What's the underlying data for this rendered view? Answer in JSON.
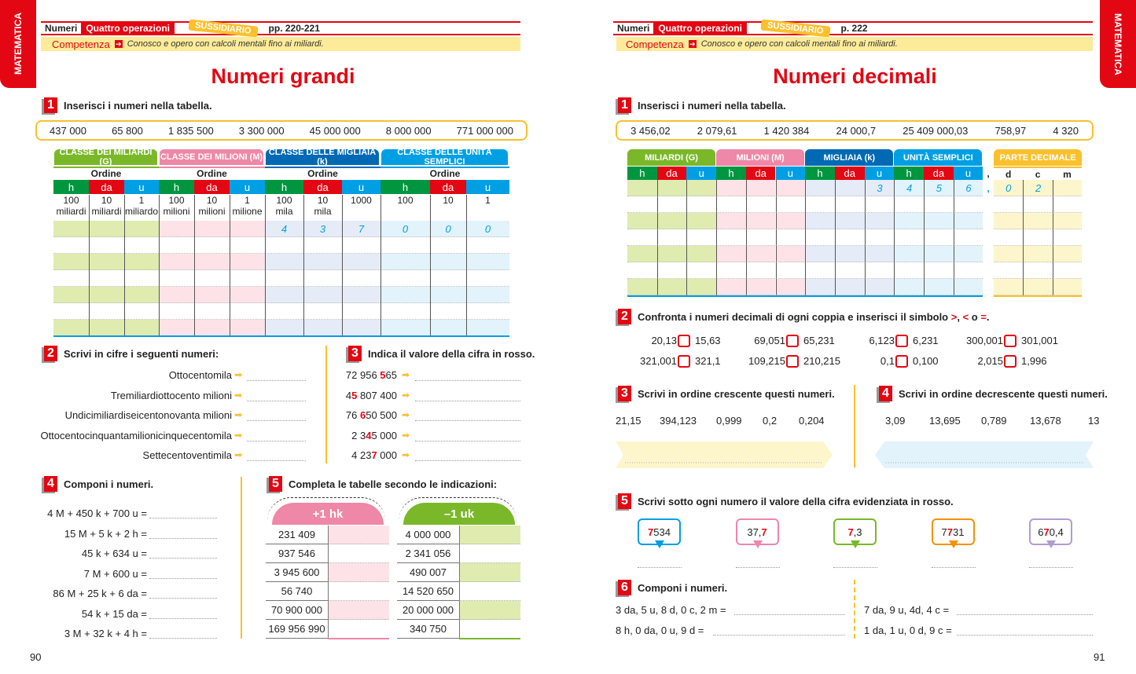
{
  "colors": {
    "red": "#e30613",
    "green": "#7ab829",
    "darkgreen": "#009640",
    "pink": "#ee87a8",
    "blue": "#0069b4",
    "lightblue": "#009fe3",
    "yellow": "#fbc02d"
  },
  "left": {
    "side_tab": "MATEMATICA",
    "header": {
      "topic": "Numeri",
      "subtopic": "Quattro operazioni",
      "tag": "SUSSIDIARIO",
      "pages": "pp. 220-221"
    },
    "competence": {
      "label": "Competenza",
      "text": "Conosco e opero con calcoli mentali fino ai miliardi."
    },
    "title": "Numeri grandi",
    "ex1": {
      "num": "1",
      "text": "Inserisci i numeri nella tabella.",
      "numbers": [
        "437 000",
        "65 800",
        "1 835 500",
        "3 300 000",
        "45 000 000",
        "8 000 000",
        "771 000 000"
      ],
      "classes": [
        "CLASSE DEI MILIARDI (G)",
        "CLASSE DEI MILIONI (M)",
        "CLASSE DELLE MIGLIAIA (k)",
        "CLASSE DELLE UNITÀ SEMPLICI"
      ],
      "order_label": "Ordine",
      "orders": [
        "h",
        "da",
        "u"
      ],
      "place_values": [
        [
          "100",
          "miliardi"
        ],
        [
          "10",
          "miliardi"
        ],
        [
          "1",
          "miliardo"
        ],
        [
          "100",
          "milioni"
        ],
        [
          "10",
          "milioni"
        ],
        [
          "1",
          "milione"
        ],
        [
          "100",
          "mila"
        ],
        [
          "10",
          "mila"
        ],
        [
          "1000",
          ""
        ],
        [
          "100",
          ""
        ],
        [
          "10",
          ""
        ],
        [
          "1",
          ""
        ]
      ],
      "example_row": [
        "",
        "",
        "",
        "",
        "",
        "",
        "4",
        "3",
        "7",
        "0",
        "0",
        "0"
      ]
    },
    "ex2": {
      "num": "2",
      "text": "Scrivi in cifre i seguenti numeri:",
      "items": [
        "Ottocentomila",
        "Tremiliardiottocento milioni",
        "Undicimiliardiseicentonovanta milioni",
        "Ottocentocinquantamilionicinquecentomila",
        "Settecentoventimila"
      ]
    },
    "ex3": {
      "num": "3",
      "text": "Indica il valore della cifra in rosso.",
      "items": [
        {
          "pre": "72 956 ",
          "red": "5",
          "post": "65"
        },
        {
          "pre": "4",
          "red": "5",
          "post": " 807 400"
        },
        {
          "pre": "76 ",
          "red": "6",
          "post": "50 500"
        },
        {
          "pre": "2 3",
          "red": "4",
          "post": "5 000"
        },
        {
          "pre": "4 23",
          "red": "7",
          "post": " 000"
        }
      ]
    },
    "ex4": {
      "num": "4",
      "text": "Componi i numeri.",
      "items": [
        "4 M + 450 k + 700 u =",
        "15 M + 5 k + 2 h =",
        "45 k + 634 u =",
        "7 M + 600 u =",
        "86 M + 25 k + 6 da =",
        "54 k + 15 da =",
        "3 M + 32 k + 4 h ="
      ]
    },
    "ex5": {
      "num": "5",
      "text": "Completa le tabelle secondo le indicazioni:",
      "tables": [
        {
          "op": "+1 hk",
          "values": [
            "231 409",
            "937 546",
            "3 945 600",
            "56 740",
            "70 900 000",
            "169 956 990"
          ]
        },
        {
          "op": "–1 uk",
          "values": [
            "4 000 000",
            "2 341 056",
            "490 007",
            "14 520 650",
            "20 000 000",
            "340 750"
          ]
        }
      ]
    },
    "page_number": "90"
  },
  "right": {
    "side_tab": "MATEMATICA",
    "header": {
      "topic": "Numeri",
      "subtopic": "Quattro operazioni",
      "tag": "SUSSIDIARIO",
      "pages": "p. 222"
    },
    "competence": {
      "label": "Competenza",
      "text": "Conosco e opero con calcoli mentali fino ai miliardi."
    },
    "title": "Numeri decimali",
    "ex1": {
      "num": "1",
      "text": "Inserisci i numeri nella tabella.",
      "numbers": [
        "3 456,02",
        "2 079,61",
        "1 420 384",
        "24 000,7",
        "25 409 000,03",
        "758,97",
        "4 320"
      ],
      "classes": [
        "MILIARDI (G)",
        "MILIONI (M)",
        "MIGLIAIA (k)",
        "UNITÀ SEMPLICI"
      ],
      "decimal_class": "PARTE DECIMALE",
      "orders": [
        "h",
        "da",
        "u"
      ],
      "decimal_orders": [
        "d",
        "c",
        "m"
      ],
      "comma": ",",
      "example_row": [
        "",
        "",
        "",
        "",
        "",
        "",
        "",
        "",
        "3",
        "4",
        "5",
        "6"
      ],
      "example_decimals": [
        "0",
        "2",
        ""
      ]
    },
    "ex2": {
      "num": "2",
      "text_pre": "Confronta i numeri decimali di ogni coppia e inserisci il simbolo ",
      "symbols": [
        ">",
        "<",
        "="
      ],
      "sep1": ", ",
      "sep2": " o ",
      "end": ".",
      "pairs": [
        [
          "20,13",
          "15,63"
        ],
        [
          "69,051",
          "65,231"
        ],
        [
          "6,123",
          "6,231"
        ],
        [
          "300,001",
          "301,001"
        ],
        [
          "321,001",
          "321,1"
        ],
        [
          "109,215",
          "210,215"
        ],
        [
          "0,1",
          "0,100"
        ],
        [
          "2,015",
          "1,996"
        ]
      ]
    },
    "ex3": {
      "num": "3",
      "text": "Scrivi in ordine crescente questi numeri.",
      "numbers": [
        "21,15",
        "394,123",
        "0,999",
        "0,2",
        "0,204"
      ]
    },
    "ex4": {
      "num": "4",
      "text": "Scrivi in ordine decrescente questi numeri.",
      "numbers": [
        "3,09",
        "13,695",
        "0,789",
        "13,678",
        "13"
      ]
    },
    "ex5": {
      "num": "5",
      "text": "Scrivi sotto ogni numero il valore della cifra evidenziata in rosso.",
      "items": [
        {
          "pre": "",
          "red": "7",
          "post": "534",
          "color": "#009fe3"
        },
        {
          "pre": "37,",
          "red": "7",
          "post": "",
          "color": "#ee87a8"
        },
        {
          "pre": "",
          "red": "7",
          "post": ",3",
          "color": "#7ab829"
        },
        {
          "pre": "7",
          "red": "7",
          "post": "31",
          "color": "#f39200"
        },
        {
          "pre": "6",
          "red": "7",
          "post": "0,4",
          "color": "#b39ccf"
        }
      ]
    },
    "ex6": {
      "num": "6",
      "text": "Componi i numeri.",
      "items": [
        "3 da, 5 u, 8 d, 0 c, 2 m =",
        "8 h, 0 da, 0 u, 9 d =",
        "7 da, 9 u, 4d, 4 c =",
        "1 da, 1 u, 0 d, 9 c ="
      ]
    },
    "page_number": "91"
  }
}
